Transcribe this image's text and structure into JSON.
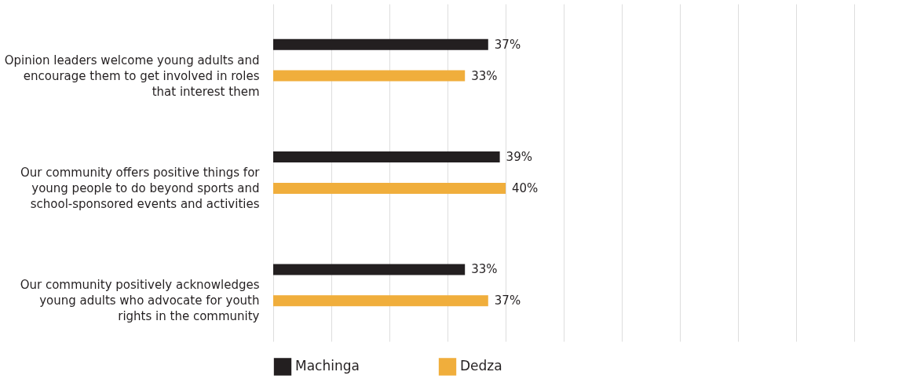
{
  "chart_data": {
    "type": "bar",
    "orientation": "horizontal",
    "categories": [
      "Opinion leaders welcome young adults and encourage them to get involved in roles that interest them",
      "Our community offers positive things for young people to do beyond sports and school-sponsored events and activities",
      "Our community positively acknowledges young adults who advocate for youth rights in the community"
    ],
    "series": [
      {
        "name": "Machinga",
        "color": "#231f20",
        "values": [
          37,
          39,
          33
        ],
        "value_labels": [
          "37%",
          "39%",
          "33%"
        ]
      },
      {
        "name": "Dedza",
        "color": "#f0ae3c",
        "values": [
          33,
          40,
          37
        ],
        "value_labels": [
          "33%",
          "40%",
          "37%"
        ]
      }
    ],
    "xlim": [
      0,
      100
    ],
    "xticks": [
      0,
      10,
      20,
      30,
      40,
      50,
      60,
      70,
      80,
      90,
      100
    ],
    "grid": "x",
    "legend": "bottom",
    "tick_labels": "y"
  }
}
